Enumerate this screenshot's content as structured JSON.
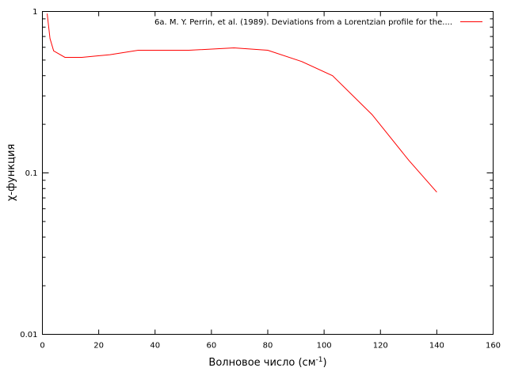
{
  "chart_data": {
    "type": "line",
    "title": "",
    "xlabel": "Волновое число (см",
    "xlabel_sup": "-1",
    "xlabel_tail": ")",
    "ylabel": "χ-функция",
    "xlim": [
      0,
      160
    ],
    "ylim": [
      0.01,
      1
    ],
    "y_scale": "log",
    "x_ticks": [
      "0",
      "20",
      "40",
      "60",
      "80",
      "100",
      "120",
      "140",
      "160"
    ],
    "y_ticks": [
      "0.01",
      "0.1",
      "1"
    ],
    "grid": false,
    "legend_position": "top-right",
    "series": [
      {
        "name": "6a. M. Y. Perrin, et al. (1989). Deviations from a Lorentzian profile for the....",
        "color": "#ff0000",
        "x": [
          1.7,
          2.7,
          4,
          8,
          14,
          24,
          34,
          52,
          68,
          80,
          92,
          103,
          117,
          130,
          140
        ],
        "y": [
          0.97,
          0.68,
          0.57,
          0.52,
          0.52,
          0.54,
          0.575,
          0.575,
          0.595,
          0.575,
          0.49,
          0.4,
          0.23,
          0.12,
          0.076
        ]
      }
    ]
  }
}
